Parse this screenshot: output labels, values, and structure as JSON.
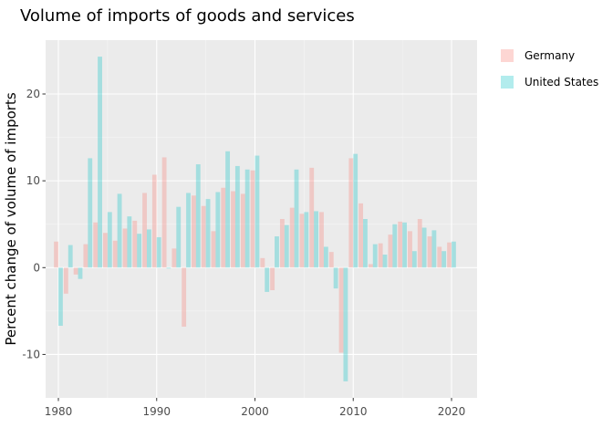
{
  "chart_data": {
    "type": "bar",
    "title": "Volume of imports of goods and services",
    "xlabel": "",
    "ylabel": "Percent change of volume of imports",
    "x": [
      1980,
      1981,
      1982,
      1983,
      1984,
      1985,
      1986,
      1987,
      1988,
      1989,
      1990,
      1991,
      1992,
      1993,
      1994,
      1995,
      1996,
      1997,
      1998,
      1999,
      2000,
      2001,
      2002,
      2003,
      2004,
      2005,
      2006,
      2007,
      2008,
      2009,
      2010,
      2011,
      2012,
      2013,
      2014,
      2015,
      2016,
      2017,
      2018,
      2019,
      2020
    ],
    "series": [
      {
        "name": "Germany",
        "color": "#f8766d",
        "values": [
          3.0,
          -3.0,
          -0.8,
          2.7,
          5.2,
          4.0,
          3.1,
          4.5,
          5.4,
          8.6,
          10.7,
          12.7,
          2.2,
          -6.8,
          8.3,
          7.1,
          4.2,
          9.2,
          8.8,
          8.5,
          11.2,
          1.1,
          -2.6,
          5.6,
          6.9,
          6.2,
          11.5,
          6.4,
          1.8,
          -9.8,
          12.6,
          7.4,
          0.4,
          2.8,
          3.8,
          5.3,
          4.2,
          5.6,
          3.6,
          2.4,
          2.9
        ]
      },
      {
        "name": "United States",
        "color": "#00bfc4",
        "values": [
          -6.7,
          2.6,
          -1.3,
          12.6,
          24.3,
          6.4,
          8.5,
          5.9,
          3.9,
          4.4,
          3.5,
          -0.1,
          7.0,
          8.6,
          11.9,
          7.9,
          8.7,
          13.4,
          11.7,
          11.3,
          12.9,
          -2.8,
          3.6,
          4.9,
          11.3,
          6.4,
          6.5,
          2.4,
          -2.4,
          -13.1,
          13.1,
          5.6,
          2.7,
          1.5,
          5.0,
          5.2,
          1.9,
          4.6,
          4.3,
          1.9,
          3.0
        ]
      }
    ],
    "x_ticks": [
      1980,
      1990,
      2000,
      2010,
      2020
    ],
    "y_ticks": [
      -10,
      0,
      10,
      20
    ],
    "xlim": [
      1978.7,
      2022.6
    ],
    "ylim": [
      -15.0,
      26.2
    ],
    "bar_opacity": 0.3,
    "grid": true,
    "legend_position": "right"
  }
}
